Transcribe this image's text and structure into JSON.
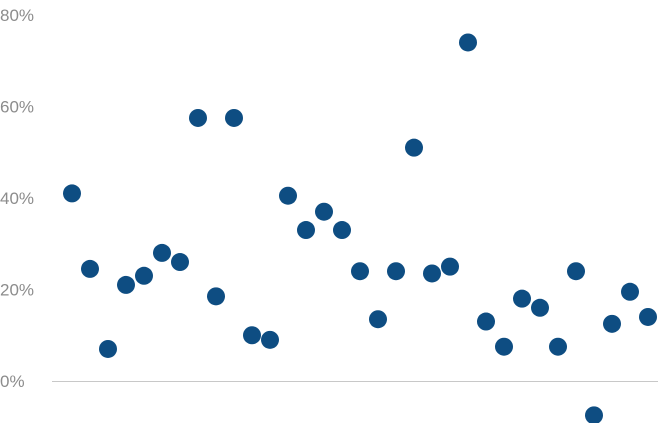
{
  "chart_data": {
    "type": "scatter",
    "title": "",
    "xlabel": "",
    "ylabel": "",
    "ylim": [
      -10,
      80
    ],
    "y_ticks": [
      0,
      20,
      40,
      60,
      80
    ],
    "y_tick_labels": [
      "0%",
      "20%",
      "40%",
      "60%",
      "80%"
    ],
    "grid": false,
    "zero_line": true,
    "x_labels_shown": false,
    "point_color": "#0e4d82",
    "series": [
      {
        "values": [
          41,
          24.5,
          7,
          21,
          23,
          28,
          26,
          57.5,
          18.5,
          57.5,
          10,
          9,
          40.5,
          33,
          37,
          33,
          24,
          13.5,
          24,
          51,
          23.5,
          25,
          74,
          13,
          7.5,
          18,
          16,
          7.5,
          24,
          -7.5,
          12.5,
          19.5,
          14
        ]
      }
    ]
  }
}
